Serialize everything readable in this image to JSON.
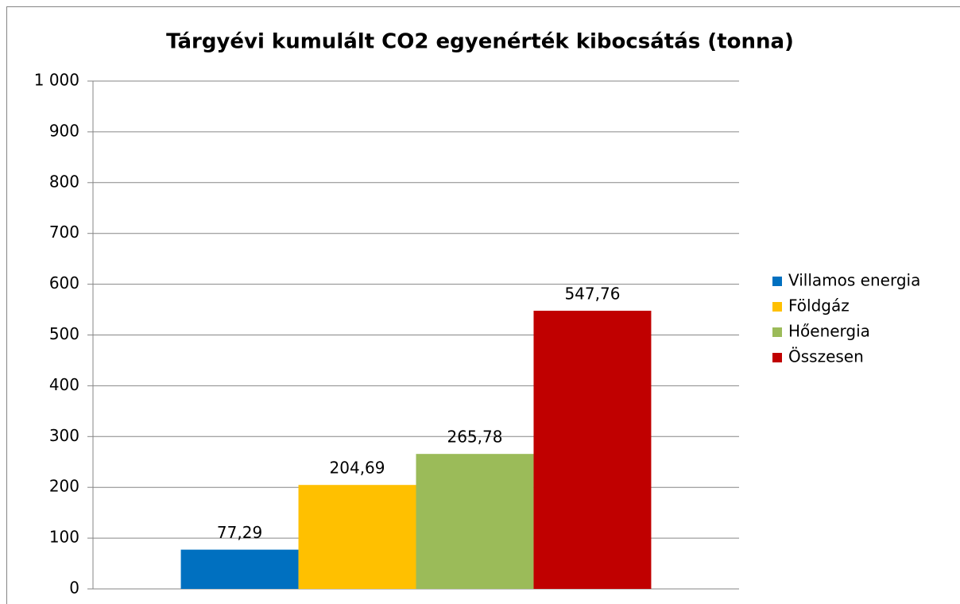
{
  "chart_data": {
    "type": "bar",
    "title": "Tárgyévi kumulált CO2 egyenérték kibocsátás (tonna)",
    "categories": [
      null
    ],
    "series": [
      {
        "name": "Villamos energia",
        "color": "#0070c0",
        "values": [
          77.29
        ],
        "value_labels": [
          "77,29"
        ]
      },
      {
        "name": "Földgáz",
        "color": "#ffc000",
        "values": [
          204.69
        ],
        "value_labels": [
          "204,69"
        ]
      },
      {
        "name": "Hőenergia",
        "color": "#9bbb59",
        "values": [
          265.78
        ],
        "value_labels": [
          "265,78"
        ]
      },
      {
        "name": "Összesen",
        "color": "#c00000",
        "values": [
          547.76
        ],
        "value_labels": [
          "547,76"
        ]
      }
    ],
    "ylim": [
      0,
      1000
    ],
    "yticks": [
      0,
      100,
      200,
      300,
      400,
      500,
      600,
      700,
      800,
      900,
      {
        "value": 1000,
        "label": "1 000"
      }
    ],
    "grid": true,
    "legend": "right"
  }
}
